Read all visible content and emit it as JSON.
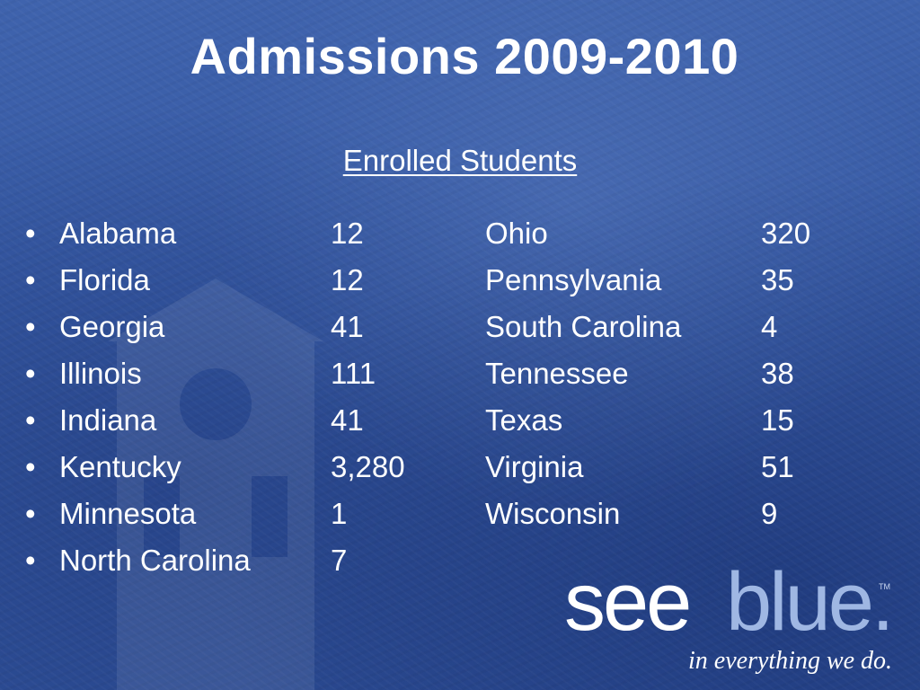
{
  "slide": {
    "title": "Admissions 2009-2010",
    "subtitle": "Enrolled Students"
  },
  "rows": [
    {
      "bullet": "•",
      "left_state": "Alabama",
      "left_count": "12",
      "right_state": "Ohio",
      "right_count": "320"
    },
    {
      "bullet": "•",
      "left_state": "Florida",
      "left_count": "12",
      "right_state": "Pennsylvania",
      "right_count": "35"
    },
    {
      "bullet": "•",
      "left_state": "Georgia",
      "left_count": "41",
      "right_state": "South Carolina",
      "right_count": "4"
    },
    {
      "bullet": "•",
      "left_state": "Illinois",
      "left_count": "111",
      "right_state": "Tennessee",
      "right_count": "38"
    },
    {
      "bullet": "•",
      "left_state": "Indiana",
      "left_count": "41",
      "right_state": "Texas",
      "right_count": "15"
    },
    {
      "bullet": "•",
      "left_state": "Kentucky",
      "left_count": "3,280",
      "right_state": "Virginia",
      "right_count": "51"
    },
    {
      "bullet": "•",
      "left_state": "Minnesota",
      "left_count": "1",
      "right_state": "Wisconsin",
      "right_count": "9"
    },
    {
      "bullet": "•",
      "left_state": "North Carolina",
      "left_count": "7",
      "right_state": "",
      "right_count": ""
    }
  ],
  "branding": {
    "logo_see": "see",
    "logo_blue": "blue.",
    "logo_tm": "TM",
    "tagline": "in everything we do."
  },
  "colors": {
    "background": "#3558a3",
    "text": "#ffffff",
    "logo_blue": "#9fb7e3"
  }
}
